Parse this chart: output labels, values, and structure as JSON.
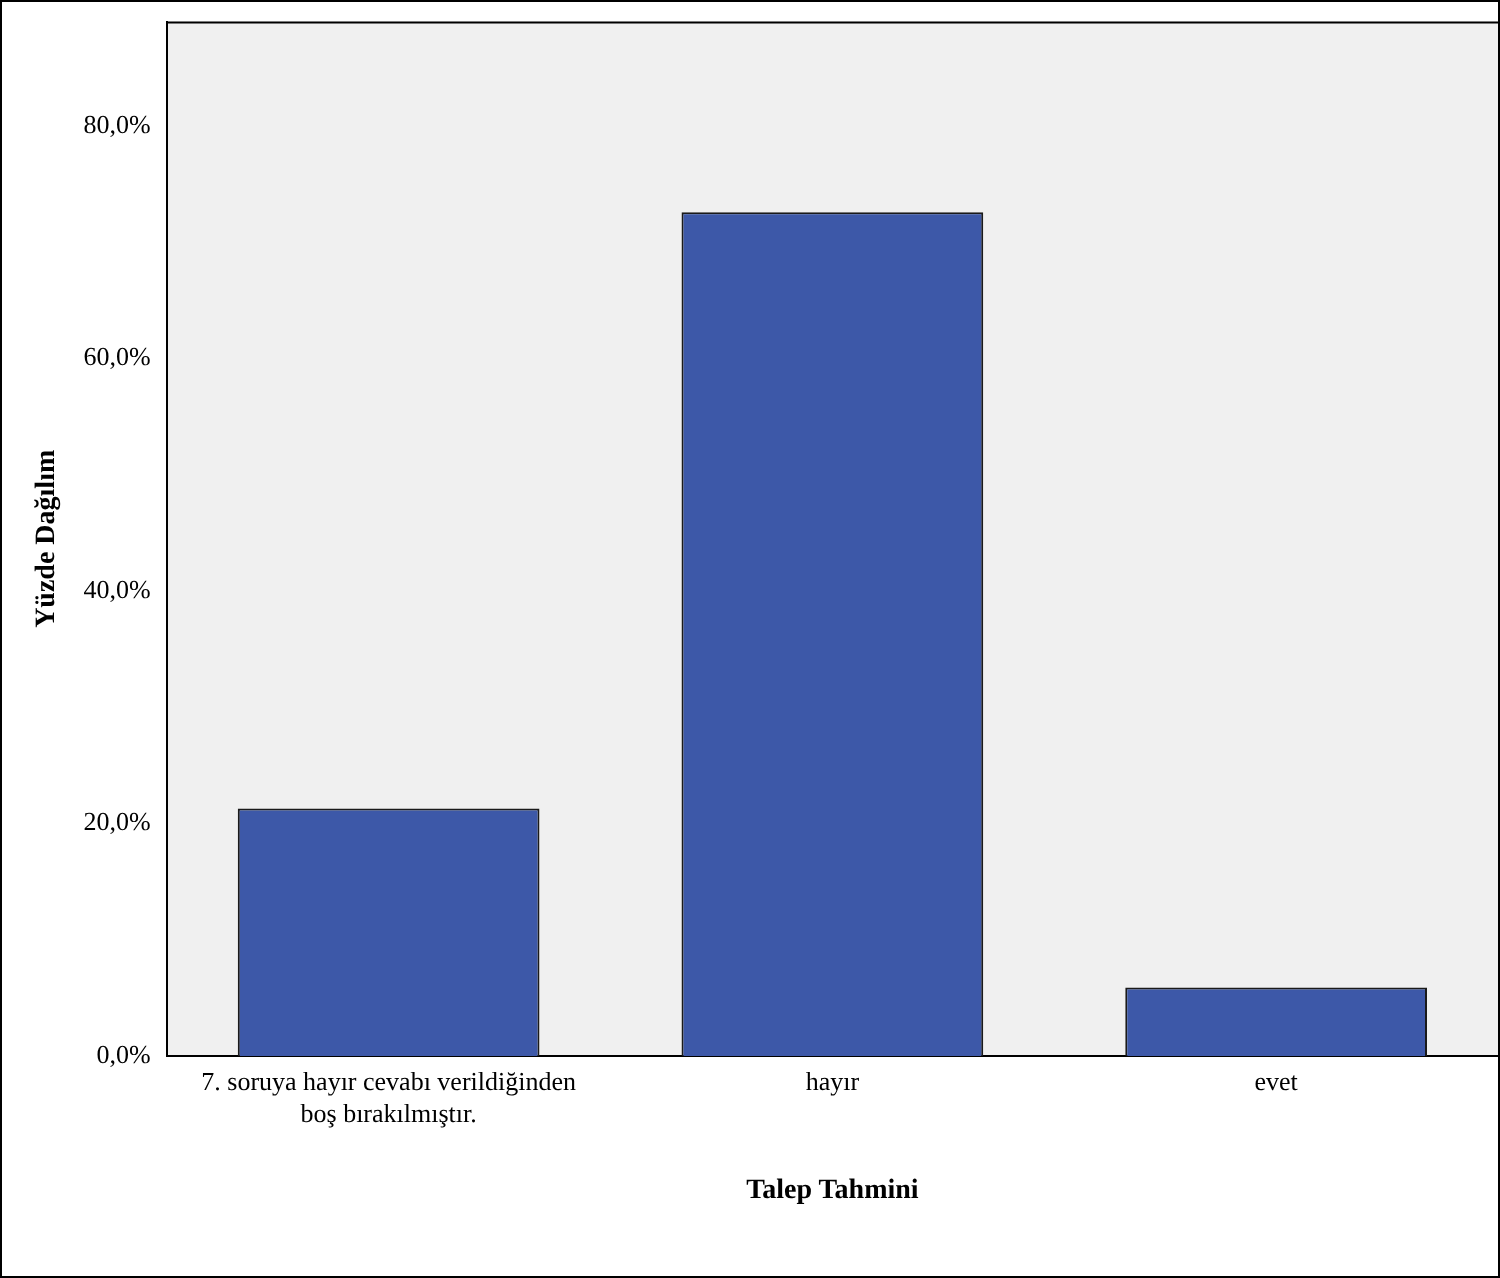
{
  "chart_data": {
    "type": "bar",
    "xlabel": "Talep Tahmini",
    "ylabel": "Yüzde Dağılım",
    "categories": [
      "7. soruya hayır cevabı verildiğinden boş bırakılmıştır.",
      "hayır",
      "evet"
    ],
    "values": [
      21.3,
      72.6,
      5.9
    ],
    "color": "#3d58a8",
    "ylim": [
      0,
      89
    ],
    "yticks": [
      {
        "value": 0,
        "label": "0,0%"
      },
      {
        "value": 20,
        "label": "20,0%"
      },
      {
        "value": 40,
        "label": "40,0%"
      },
      {
        "value": 60,
        "label": "60,0%"
      },
      {
        "value": 80,
        "label": "80,0%"
      }
    ],
    "grid": false,
    "legend": false
  }
}
